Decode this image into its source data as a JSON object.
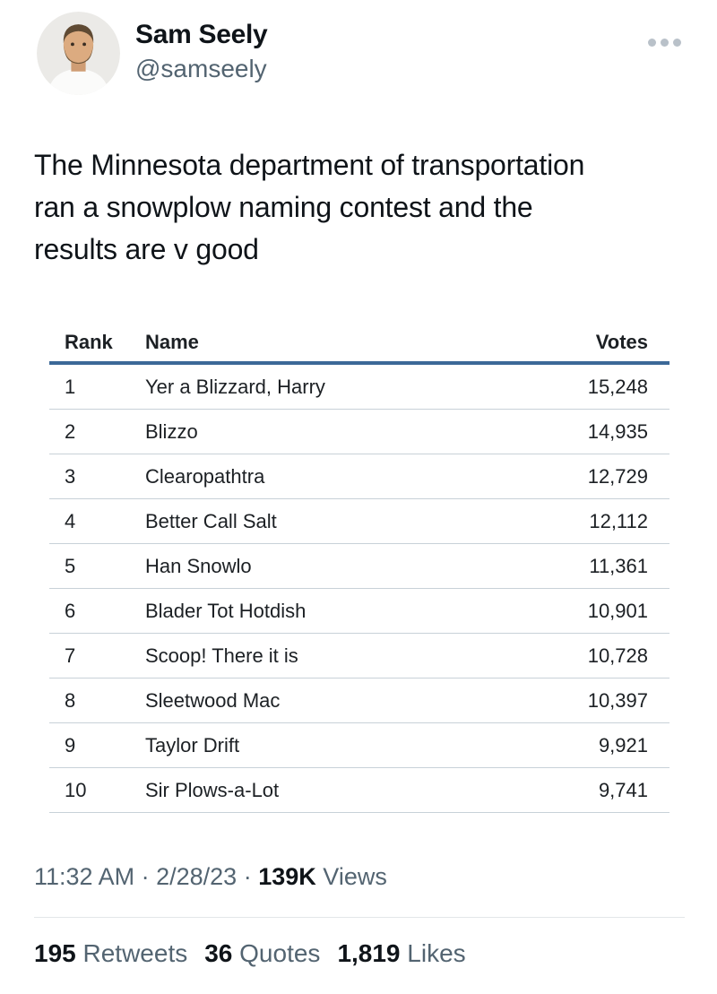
{
  "header": {
    "display_name": "Sam Seely",
    "handle": "@samseely"
  },
  "tweet": {
    "text": "The Minnesota department of transportation ran a snowplow naming contest and the results are v good",
    "lines": [
      "The Minnesota department of transportation",
      "ran a snowplow naming contest and the",
      "results are v good"
    ]
  },
  "table": {
    "columns": {
      "rank": "Rank",
      "name": "Name",
      "votes": "Votes"
    },
    "rows": [
      {
        "rank": "1",
        "name": "Yer a Blizzard, Harry",
        "votes": "15,248"
      },
      {
        "rank": "2",
        "name": "Blizzo",
        "votes": "14,935"
      },
      {
        "rank": "3",
        "name": "Clearopathtra",
        "votes": "12,729"
      },
      {
        "rank": "4",
        "name": "Better Call Salt",
        "votes": "12,112"
      },
      {
        "rank": "5",
        "name": "Han Snowlo",
        "votes": "11,361"
      },
      {
        "rank": "6",
        "name": "Blader Tot Hotdish",
        "votes": "10,901"
      },
      {
        "rank": "7",
        "name": "Scoop! There it is",
        "votes": "10,728"
      },
      {
        "rank": "8",
        "name": "Sleetwood Mac",
        "votes": "10,397"
      },
      {
        "rank": "9",
        "name": "Taylor Drift",
        "votes": "9,921"
      },
      {
        "rank": "10",
        "name": "Sir Plows-a-Lot",
        "votes": "9,741"
      }
    ]
  },
  "meta": {
    "time": "11:32 AM",
    "date": "2/28/23",
    "dot": "·",
    "views_count": "139K",
    "views_label": "Views"
  },
  "stats": [
    {
      "count": "195",
      "label": "Retweets"
    },
    {
      "count": "36",
      "label": "Quotes"
    },
    {
      "count": "1,819",
      "label": "Likes"
    }
  ],
  "colors": {
    "text_primary": "#0f1419",
    "text_secondary": "#536471",
    "table_header_rule": "#3b6897",
    "table_row_rule": "#c8d1d8"
  }
}
